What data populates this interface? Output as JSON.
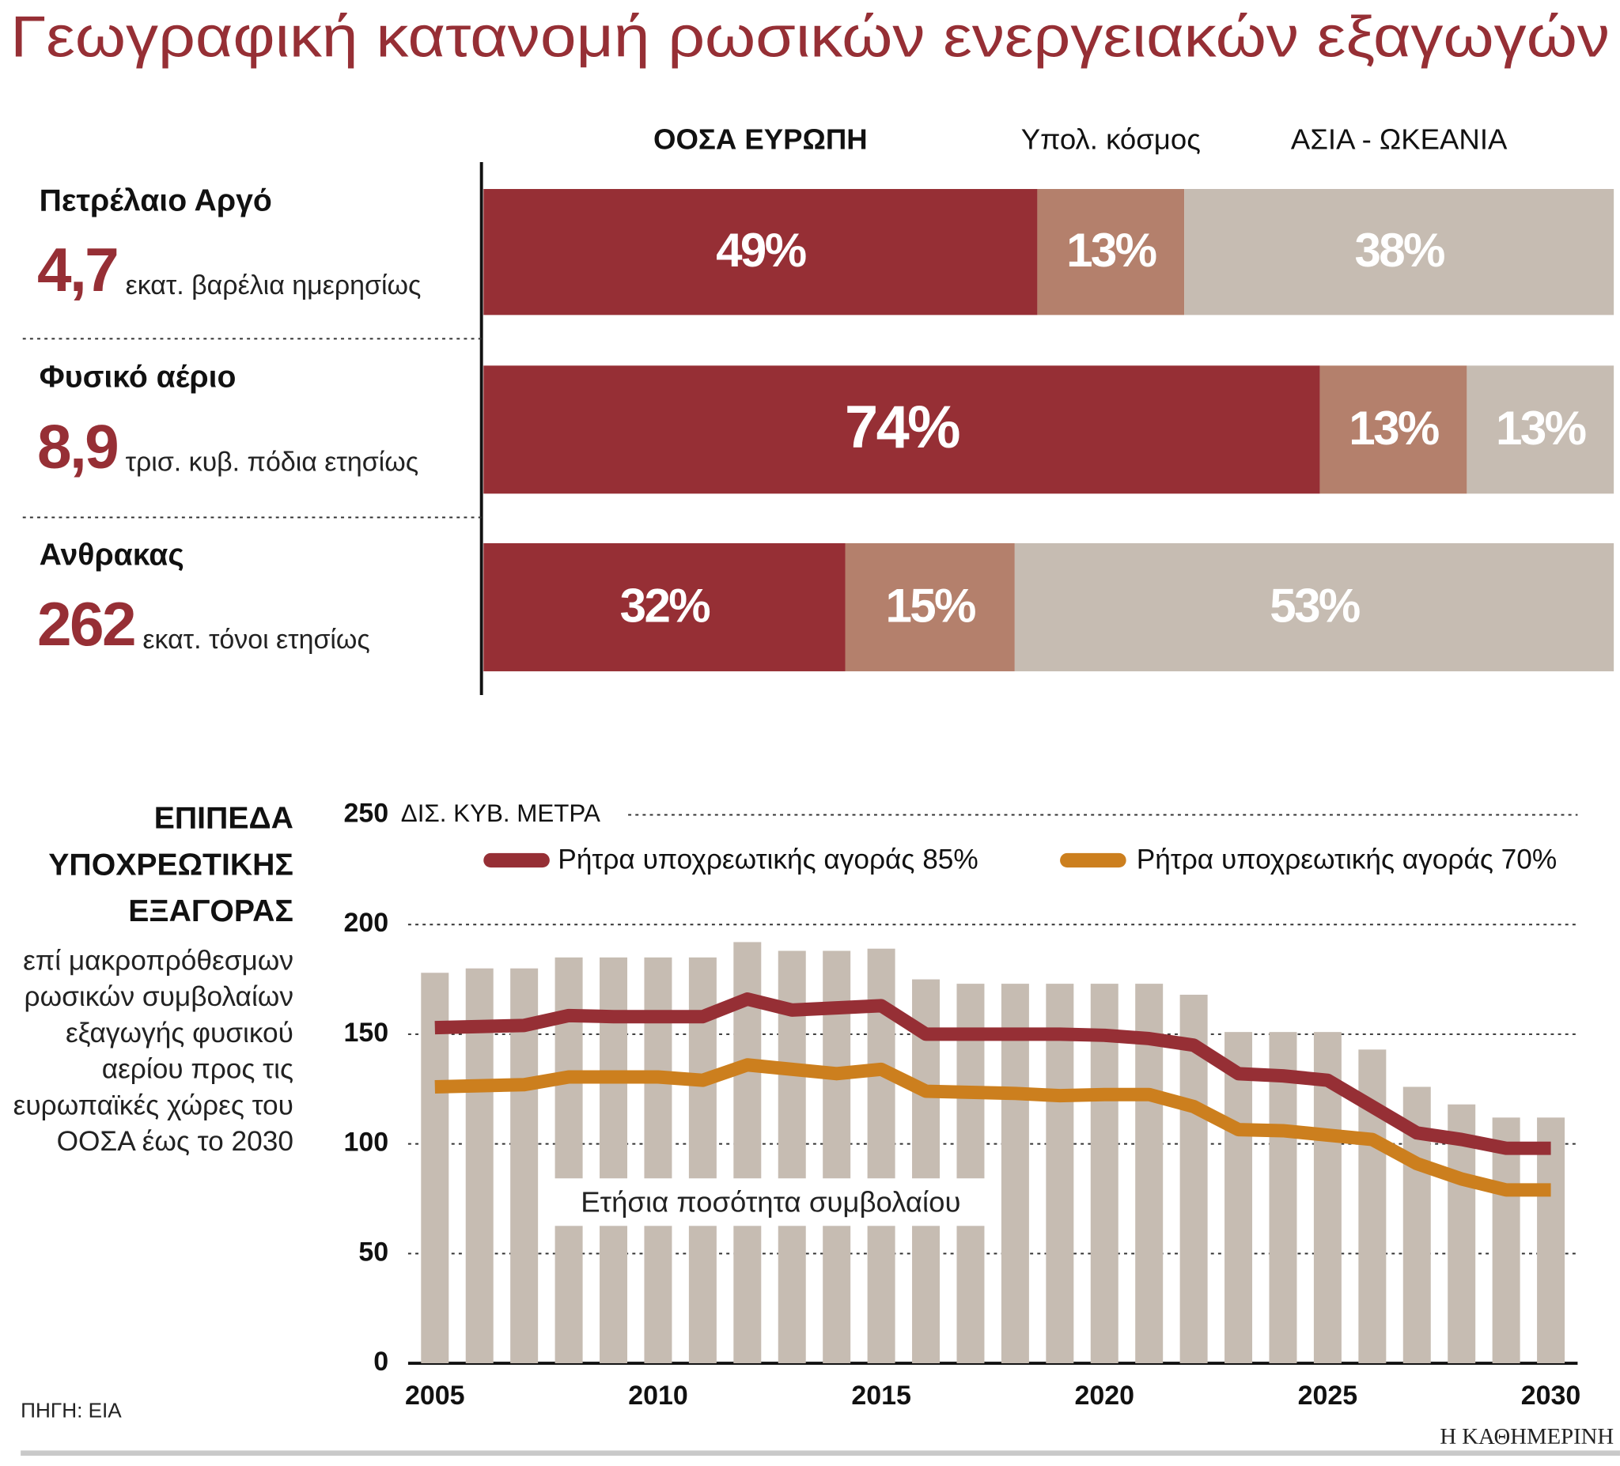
{
  "title": "Γεωγραφική κατανομή ρωσικών ενεργειακών εξαγωγών",
  "source": "ΠΗΓΗ: ΕΙΑ",
  "brand": "Η ΚΑΘΗΜΕΡΙΝΗ",
  "chart_data": [
    {
      "type": "stacked-bar",
      "orientation": "horizontal",
      "categories": [
        "Πετρέλαιο Αργό",
        "Φυσικό αέριο",
        "Ανθρακας"
      ],
      "amounts": [
        {
          "value": 4.7,
          "label": "4,7"
        },
        {
          "value": 8.9,
          "label": "8,9"
        },
        262
      ],
      "units": [
        "εκατ. βαρέλια ημερησίως",
        "τρισ. κυβ. πόδια ετησίως",
        "εκατ. τόνοι ετησίως"
      ],
      "xlim": [
        0,
        100
      ],
      "series": [
        {
          "name": "ΟΟΣΑ ΕΥΡΩΠΗ",
          "color": "#962f35",
          "values": [
            49,
            74,
            32
          ],
          "value_labels": [
            "49%",
            "74%",
            "32%"
          ]
        },
        {
          "name": "Υπολ. κόσμος",
          "color": "#b4806c",
          "values": [
            13,
            13,
            15
          ],
          "value_labels": [
            "13%",
            "13%",
            "15%"
          ]
        },
        {
          "name": "ΑΣΙΑ - ΩΚΕΑΝΙΑ",
          "color": "#c6bcb2",
          "values": [
            38,
            13,
            53
          ],
          "value_labels": [
            "38%",
            "13%",
            "53%"
          ]
        }
      ]
    },
    {
      "type": "bar-line",
      "title": "ΕΠΙΠΕΔΑ ΥΠΟΧΡΕΩΤΙΚΗΣ ΕΞΑΓΟΡΑΣ",
      "subtitle": "επί μακροπρόθεσμων ρωσικών συμβολαίων εξαγωγής φυσικού αερίου προς τις ευρωπαϊκές χώρες του ΟΟΣΑ έως το 2030",
      "y_label": "ΔΙΣ. ΚΥΒ. ΜΕΤΡΑ",
      "x": [
        2005,
        2006,
        2007,
        2008,
        2009,
        2010,
        2011,
        2012,
        2013,
        2014,
        2015,
        2016,
        2017,
        2018,
        2019,
        2020,
        2021,
        2022,
        2023,
        2024,
        2025,
        2026,
        2027,
        2028,
        2029,
        2030
      ],
      "xlim": [
        2004.4,
        2030.6
      ],
      "xticks": [
        2005,
        2010,
        2015,
        2020,
        2025,
        2030
      ],
      "ylim": [
        0,
        250
      ],
      "yticks": [
        0,
        50,
        100,
        150,
        200,
        250
      ],
      "grid": true,
      "series": [
        {
          "name": "Ετήσια ποσότητα συμβολαίου",
          "type": "bar",
          "color": "#c6bcb2",
          "values": [
            178,
            180,
            180,
            185,
            185,
            185,
            185,
            192,
            188,
            188,
            189,
            175,
            173,
            173,
            173,
            173,
            173,
            168,
            151,
            151,
            151,
            143,
            126,
            118,
            112,
            112
          ]
        },
        {
          "name": "Ρήτρα υποχρεωτικής αγοράς 85%",
          "type": "line",
          "color": "#962f35",
          "values": [
            153,
            153.5,
            154,
            158.5,
            158,
            158,
            158,
            166,
            161,
            162,
            163,
            150,
            150,
            150,
            150,
            149.5,
            148,
            145,
            132,
            131,
            129,
            117,
            105,
            102,
            98,
            98
          ]
        },
        {
          "name": "Ρήτρα υποχρεωτικής αγοράς 70%",
          "type": "line",
          "color": "#cc7f1e",
          "values": [
            126,
            126.5,
            127,
            130.5,
            130.5,
            130.5,
            129,
            136,
            134,
            132,
            134,
            124,
            123.5,
            123,
            122,
            122.5,
            122.5,
            117,
            106.5,
            106,
            104,
            102,
            91,
            84,
            79,
            79
          ]
        }
      ]
    }
  ]
}
